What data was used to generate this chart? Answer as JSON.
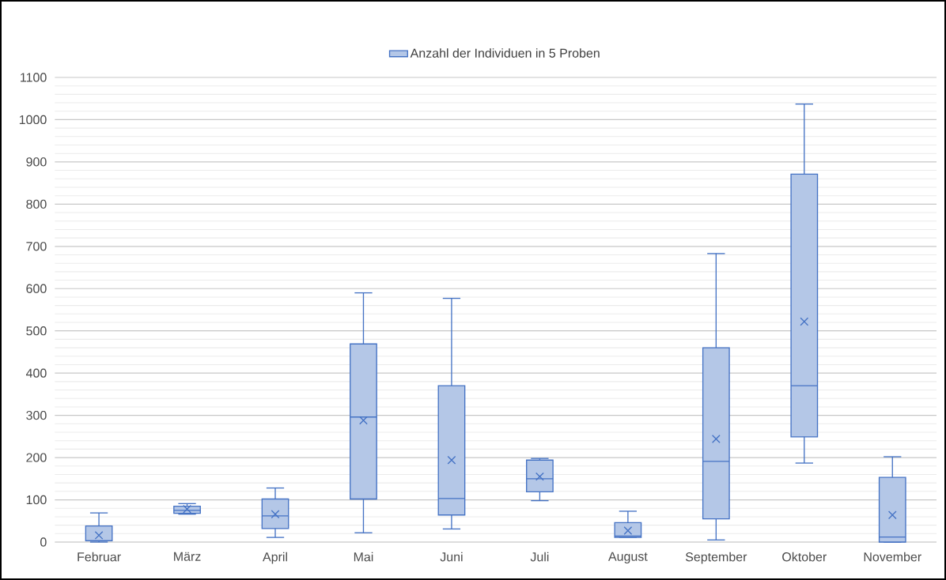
{
  "chart_data": {
    "type": "box",
    "categories": [
      "Februar",
      "März",
      "April",
      "Mai",
      "Juni",
      "Juli",
      "August",
      "September",
      "Oktober",
      "November"
    ],
    "series": [
      {
        "name": "Anzahl der Individuen in 5 Proben",
        "color": "#4472c4",
        "boxes": [
          {
            "low": 0,
            "q1": 3,
            "median": 3,
            "q3": 38,
            "high": 69,
            "mean": 16
          },
          {
            "low": 66,
            "q1": 68,
            "median": 75,
            "q3": 85,
            "high": 91,
            "mean": 78
          },
          {
            "low": 11,
            "q1": 32,
            "median": 62,
            "q3": 102,
            "high": 128,
            "mean": 66
          },
          {
            "low": 22,
            "q1": 102,
            "median": 296,
            "q3": 469,
            "high": 590,
            "mean": 288
          },
          {
            "low": 31,
            "q1": 64,
            "median": 103,
            "q3": 370,
            "high": 577,
            "mean": 194
          },
          {
            "low": 98,
            "q1": 119,
            "median": 150,
            "q3": 194,
            "high": 198,
            "mean": 155
          },
          {
            "low": 11,
            "q1": 11,
            "median": 14,
            "q3": 46,
            "high": 73,
            "mean": 27
          },
          {
            "low": 5,
            "q1": 55,
            "median": 191,
            "q3": 460,
            "high": 683,
            "mean": 244
          },
          {
            "low": 187,
            "q1": 249,
            "median": 370,
            "q3": 871,
            "high": 1037,
            "mean": 522
          },
          {
            "low": 0,
            "q1": 0,
            "median": 12,
            "q3": 153,
            "high": 202,
            "mean": 64
          }
        ]
      }
    ],
    "ylim": [
      0,
      1100
    ],
    "yticks": [
      0,
      {
        "value": 20,
        "label": null
      },
      {
        "value": 40,
        "label": null
      },
      {
        "value": 60,
        "label": null
      },
      {
        "value": 80,
        "label": null
      },
      100,
      {
        "value": 120,
        "label": null
      },
      {
        "value": 140,
        "label": null
      },
      {
        "value": 160,
        "label": null
      },
      {
        "value": 180,
        "label": null
      },
      200,
      {
        "value": 220,
        "label": null
      },
      {
        "value": 240,
        "label": null
      },
      {
        "value": 260,
        "label": null
      },
      {
        "value": 280,
        "label": null
      },
      300,
      {
        "value": 320,
        "label": null
      },
      {
        "value": 340,
        "label": null
      },
      {
        "value": 360,
        "label": null
      },
      {
        "value": 380,
        "label": null
      },
      400,
      {
        "value": 420,
        "label": null
      },
      {
        "value": 440,
        "label": null
      },
      {
        "value": 460,
        "label": null
      },
      {
        "value": 480,
        "label": null
      },
      500,
      {
        "value": 520,
        "label": null
      },
      {
        "value": 540,
        "label": null
      },
      {
        "value": 560,
        "label": null
      },
      {
        "value": 580,
        "label": null
      },
      600,
      {
        "value": 620,
        "label": null
      },
      {
        "value": 640,
        "label": null
      },
      {
        "value": 660,
        "label": null
      },
      {
        "value": 680,
        "label": null
      },
      700,
      {
        "value": 720,
        "label": null
      },
      {
        "value": 740,
        "label": null
      },
      {
        "value": 760,
        "label": null
      },
      {
        "value": 780,
        "label": null
      },
      800,
      {
        "value": 820,
        "label": null
      },
      {
        "value": 840,
        "label": null
      },
      {
        "value": 860,
        "label": null
      },
      {
        "value": 880,
        "label": null
      },
      900,
      {
        "value": 920,
        "label": null
      },
      {
        "value": 940,
        "label": null
      },
      {
        "value": 960,
        "label": null
      },
      {
        "value": 980,
        "label": null
      },
      1000,
      {
        "value": 1020,
        "label": null
      },
      {
        "value": 1040,
        "label": null
      },
      {
        "value": 1060,
        "label": null
      },
      {
        "value": 1080,
        "label": null
      },
      1100
    ],
    "grid": "y",
    "legend": "top",
    "marker": "cross"
  }
}
